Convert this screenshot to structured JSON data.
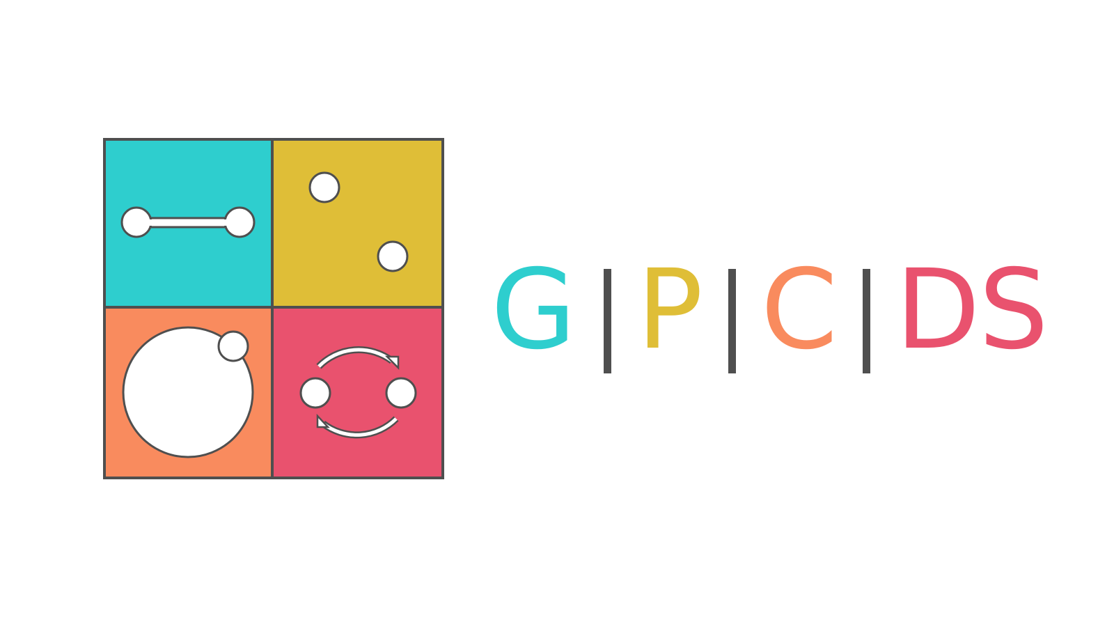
{
  "logo": {
    "quadrants": [
      {
        "name": "top-left",
        "color": "#2ECECE",
        "icon": "connected-nodes-icon"
      },
      {
        "name": "top-right",
        "color": "#DFBE37",
        "icon": "scattered-nodes-icon"
      },
      {
        "name": "bottom-left",
        "color": "#F98B5E",
        "icon": "orbiting-node-icon"
      },
      {
        "name": "bottom-right",
        "color": "#E9526E",
        "icon": "cycle-arrows-icon"
      }
    ],
    "border_color": "#4F4F4F"
  },
  "wordmark": {
    "letters": [
      {
        "char": "G",
        "color": "#2ECECE"
      },
      {
        "char": "P",
        "color": "#DFBE37"
      },
      {
        "char": "C",
        "color": "#F98B5E"
      },
      {
        "char": "D",
        "color": "#E9526E"
      },
      {
        "char": "S",
        "color": "#E9526E"
      }
    ],
    "separator_color": "#4F4F4F"
  }
}
